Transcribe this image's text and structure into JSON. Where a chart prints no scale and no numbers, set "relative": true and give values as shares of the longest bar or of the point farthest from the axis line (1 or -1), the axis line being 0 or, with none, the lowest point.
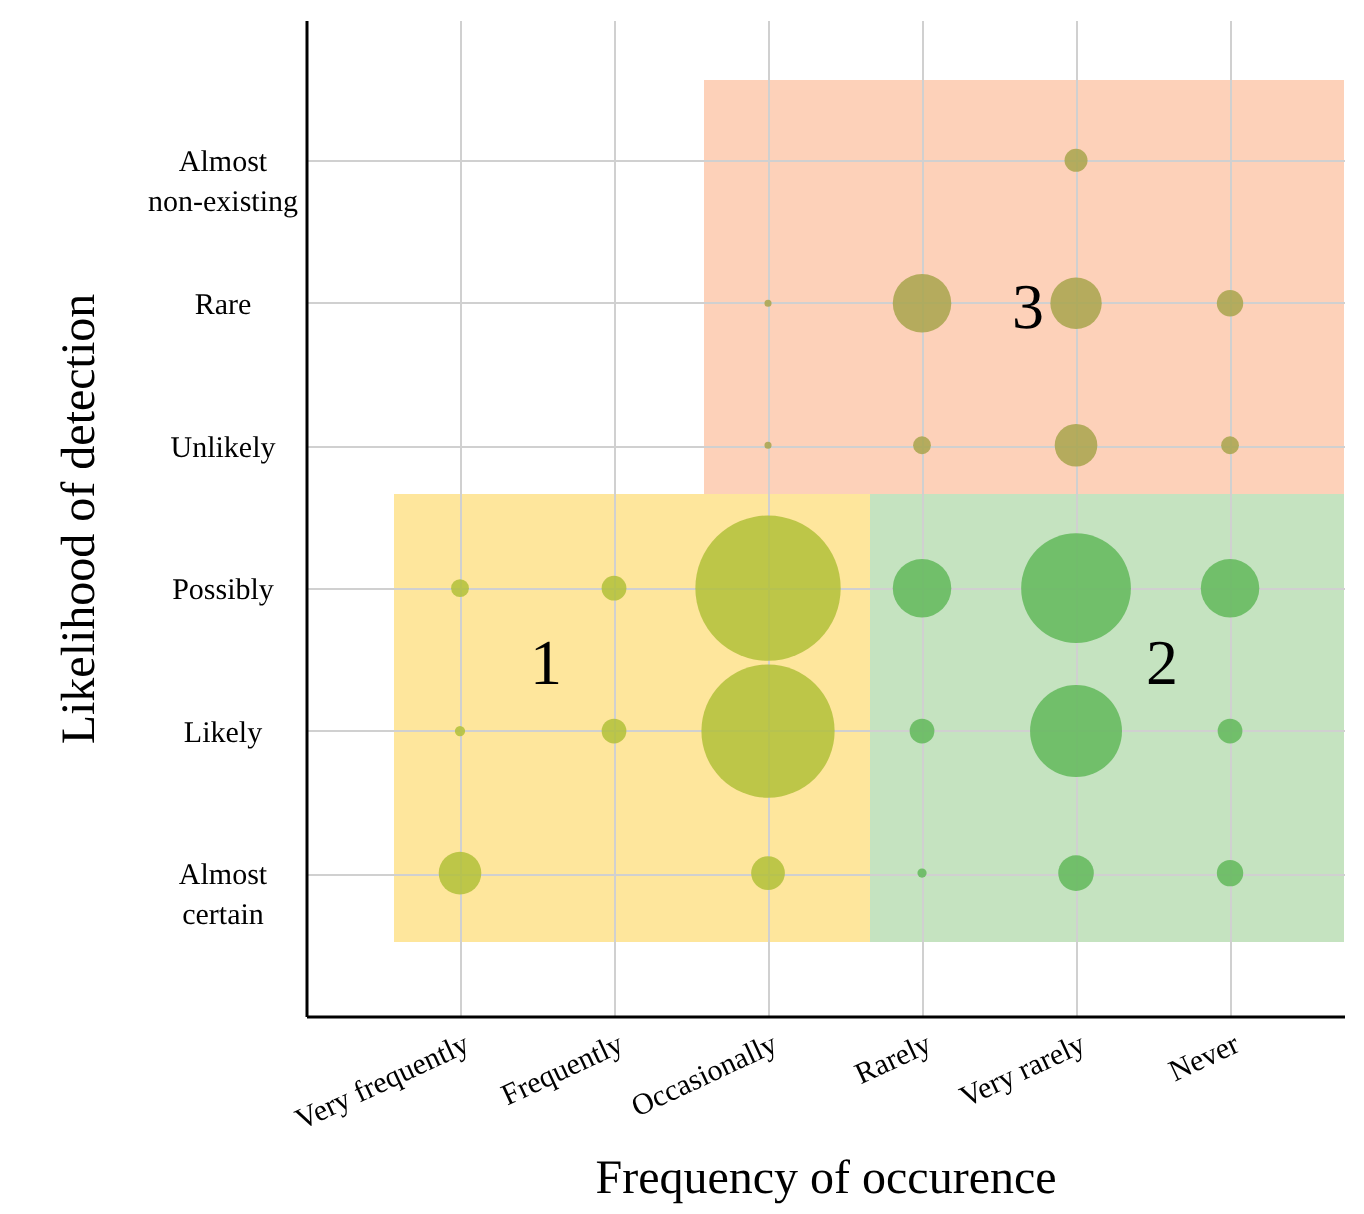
{
  "chart_data": {
    "type": "bubble",
    "relative": true,
    "xlabel": "Frequency of occurence",
    "ylabel": "Likelihood of detection",
    "categories": [
      "Very frequently",
      "Frequently",
      "Occasionally",
      "Rarely",
      "Very rarely",
      "Never"
    ],
    "y_categories": [
      "Almost non-existing",
      "Rare",
      "Unlikely",
      "Possibly",
      "Likely",
      "Almost certain"
    ],
    "grid": true,
    "annotations": [
      "1",
      "2",
      "3"
    ],
    "series": [
      {
        "x": [
          "Very rarely",
          "Occasionally",
          "Rarely",
          "Very rarely",
          "Never",
          "Occasionally",
          "Rarely",
          "Very rarely",
          "Never",
          "Very frequently",
          "Frequently",
          "Occasionally",
          "Rarely",
          "Very rarely",
          "Never",
          "Very frequently",
          "Frequently",
          "Occasionally",
          "Rarely",
          "Very rarely",
          "Never",
          "Very frequently",
          "Occasionally",
          "Rarely",
          "Very rarely",
          "Never"
        ],
        "values": [
          1,
          0.833,
          0.833,
          0.833,
          0.833,
          0.667,
          0.667,
          0.667,
          0.667,
          0.5,
          0.5,
          0.5,
          0.5,
          0.5,
          0.5,
          0.333,
          0.333,
          0.333,
          0.333,
          0.333,
          0.333,
          0.167,
          0.167,
          0.167,
          0.167,
          0.167
        ],
        "sizes": [
          0.025,
          0.0024,
          0.162,
          0.125,
          0.033,
          0.0024,
          0.015,
          0.086,
          0.015,
          0.015,
          0.029,
          1,
          0.162,
          0.57,
          0.162,
          0.005,
          0.029,
          0.84,
          0.029,
          0.4,
          0.029,
          0.086,
          0.054,
          0.004,
          0.06,
          0.033
        ],
        "colors": [
          "#a8a54c",
          "#a8a54c",
          "#a8a54c",
          "#a8a54c",
          "#a8a54c",
          "#a8a54c",
          "#a8a54c",
          "#a8a54c",
          "#a8a54c",
          "#b2bf3a",
          "#b2bf3a",
          "#b2bf3a",
          "#62b95a",
          "#62b95a",
          "#62b95a",
          "#b2bf3a",
          "#b2bf3a",
          "#b2bf3a",
          "#62b95a",
          "#62b95a",
          "#62b95a",
          "#b2bf3a",
          "#b2bf3a",
          "#62b95a",
          "#62b95a",
          "#62b95a"
        ]
      }
    ]
  }
}
